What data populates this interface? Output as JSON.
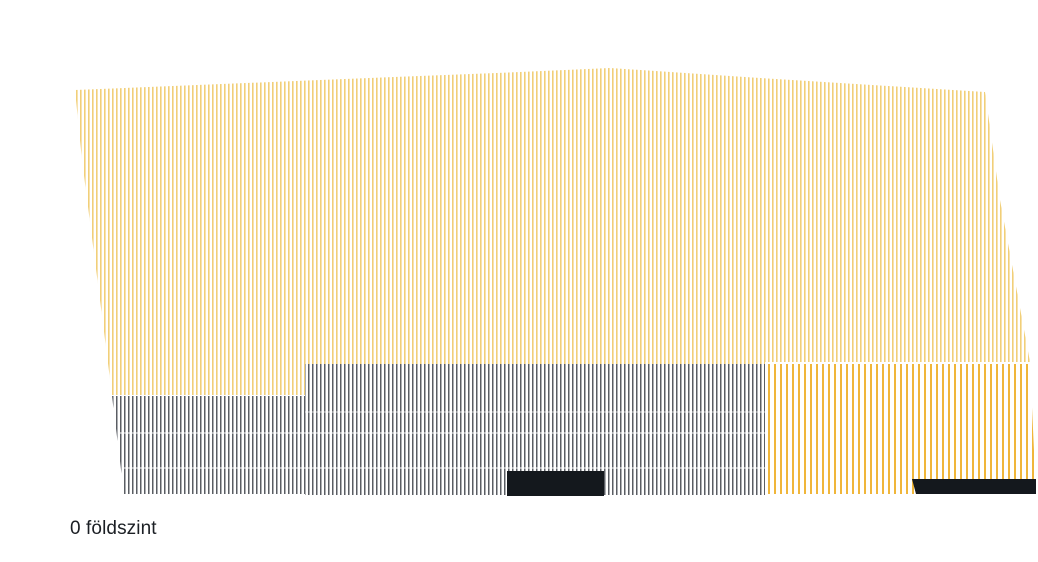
{
  "floor": {
    "label": "0 földszint"
  },
  "colors": {
    "hatch_light_yellow": "#f1cf78",
    "hatch_dark_yellow": "#f0b63a",
    "hatch_grey": "#5a5d63",
    "solid_dark": "#14181d",
    "background": "#ffffff"
  }
}
